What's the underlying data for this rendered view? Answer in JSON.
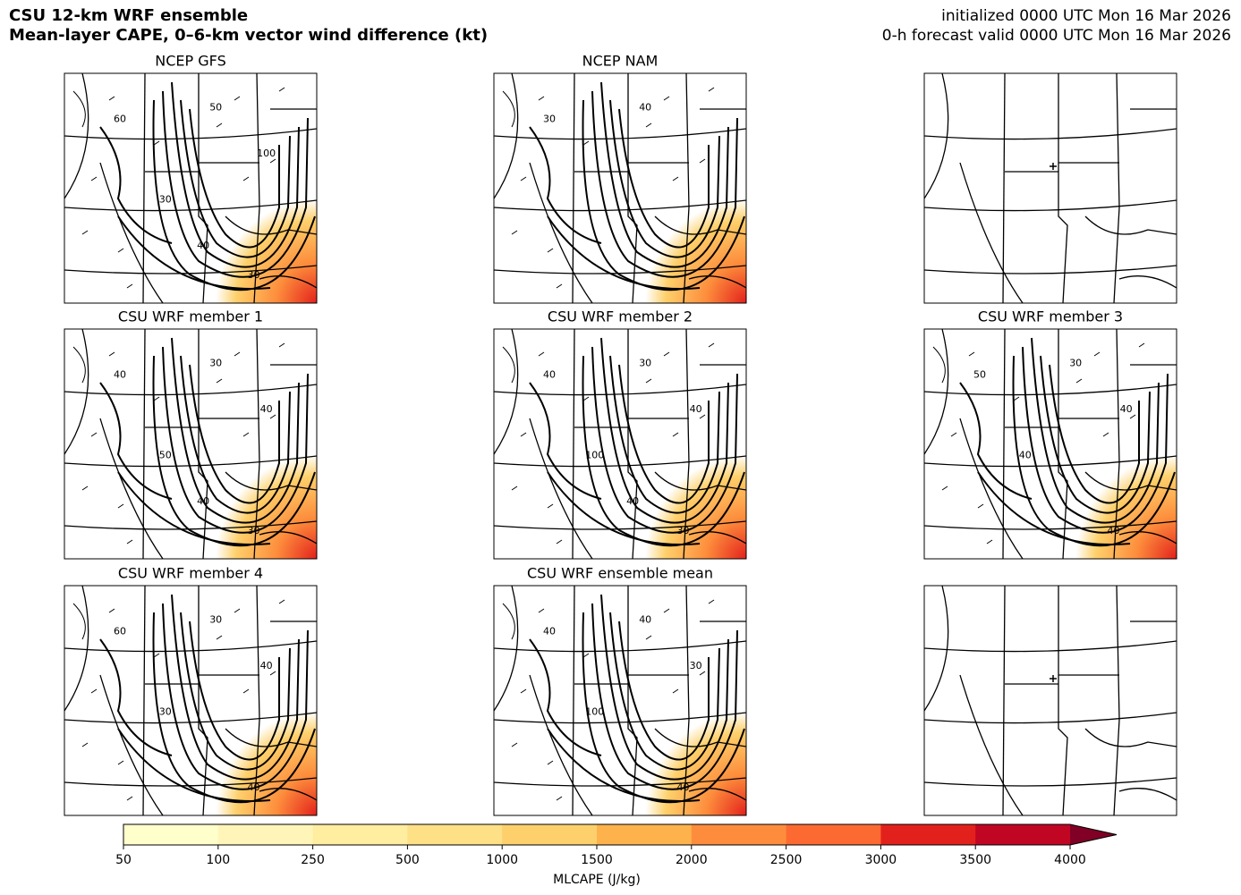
{
  "chart_data": {
    "type": "map-panels",
    "title": "CSU 12-km WRF ensemble",
    "subtitle": "Mean-layer CAPE, 0–6-km vector wind difference (kt)",
    "init_text": "initialized 0000 UTC Mon 16 Mar 2026",
    "valid_text": "0-h forecast valid 0000 UTC Mon 16 Mar 2026",
    "panels": [
      {
        "title": "NCEP GFS",
        "contour_labels": [
          60,
          50,
          30,
          100,
          30,
          40
        ]
      },
      {
        "title": "NCEP NAM",
        "contour_labels": [
          30,
          40
        ]
      },
      {
        "title": "CSU WRF member 1",
        "contour_labels": [
          40,
          30,
          50,
          40,
          30,
          40
        ]
      },
      {
        "title": "CSU WRF member 2",
        "contour_labels": [
          40,
          30,
          100,
          40,
          30,
          40
        ]
      },
      {
        "title": "CSU WRF member 3",
        "contour_labels": [
          50,
          30,
          40,
          40,
          40
        ]
      },
      {
        "title": "CSU WRF member 4",
        "contour_labels": [
          60,
          30,
          30,
          40,
          40
        ]
      },
      {
        "title": "CSU WRF ensemble mean",
        "contour_labels": [
          40,
          40,
          100,
          30,
          40
        ]
      }
    ],
    "colorbar": {
      "label": "MLCAPE (J/kg)",
      "ticks": [
        50,
        100,
        250,
        500,
        1000,
        1500,
        2000,
        2500,
        3000,
        3500,
        4000
      ],
      "colors": [
        "#ffffcc",
        "#fff5b8",
        "#ffeda0",
        "#fee086",
        "#fed06b",
        "#feb24c",
        "#fd8d3c",
        "#fc6a32",
        "#e3211c",
        "#c10624"
      ],
      "extend_color": "#800026"
    }
  }
}
